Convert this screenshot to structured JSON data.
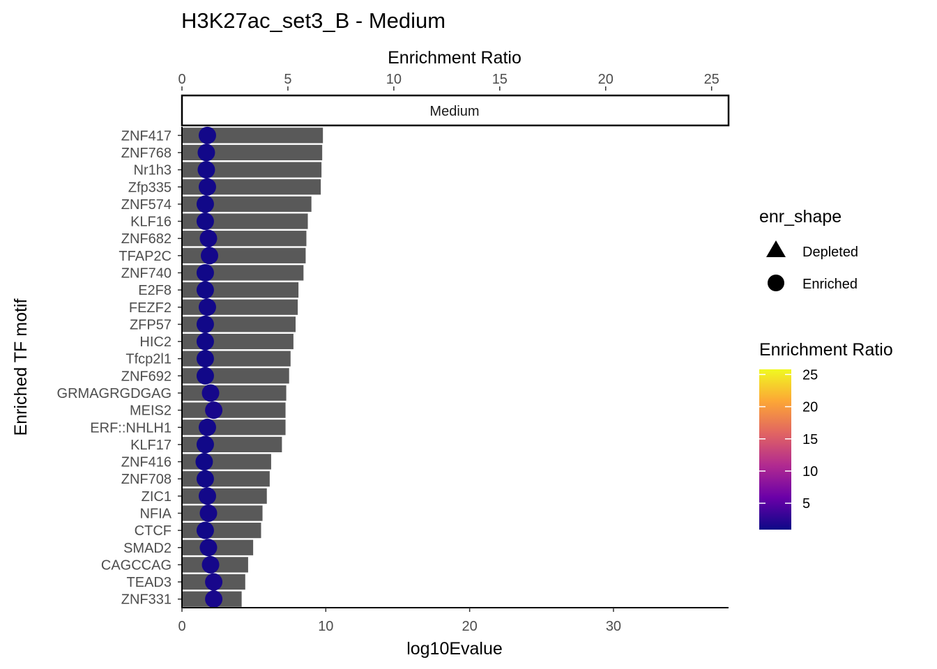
{
  "chart_data": {
    "type": "bar",
    "title": "H3K27ac_set3_B - Medium",
    "facet_label": "Medium",
    "xlabel": "log10Evalue",
    "ylabel": "Enriched TF motif",
    "secondary_xlabel": "Enrichment Ratio",
    "xlim": [
      0,
      38
    ],
    "x_ticks": [
      0,
      10,
      20,
      30
    ],
    "secondary_xlim": [
      0,
      25.8
    ],
    "secondary_x_ticks": [
      0,
      5,
      10,
      15,
      20,
      25
    ],
    "categories": [
      "ZNF417",
      "ZNF768",
      "Nr1h3",
      "Zfp335",
      "ZNF574",
      "KLF16",
      "ZNF682",
      "TFAP2C",
      "ZNF740",
      "E2F8",
      "FEZF2",
      "ZFP57",
      "HIC2",
      "Tfcp2l1",
      "ZNF692",
      "GRMAGRGDGAG",
      "MEIS2",
      "ERF::NHLH1",
      "KLF17",
      "ZNF416",
      "ZNF708",
      "ZIC1",
      "NFIA",
      "CTCF",
      "SMAD2",
      "CAGCCAG",
      "TEAD3",
      "ZNF331"
    ],
    "series": [
      {
        "name": "log10Evalue",
        "mark": "bar",
        "color": "#595959",
        "values": [
          9.8,
          9.75,
          9.7,
          9.65,
          9.0,
          8.75,
          8.65,
          8.6,
          8.45,
          8.1,
          8.05,
          7.9,
          7.75,
          7.55,
          7.45,
          7.25,
          7.2,
          7.2,
          6.95,
          6.2,
          6.1,
          5.9,
          5.6,
          5.5,
          4.95,
          4.6,
          4.4,
          4.15
        ]
      },
      {
        "name": "Enrichment Ratio",
        "mark": "point",
        "values": [
          1.2,
          1.15,
          1.15,
          1.2,
          1.1,
          1.1,
          1.25,
          1.3,
          1.1,
          1.1,
          1.2,
          1.1,
          1.1,
          1.1,
          1.1,
          1.35,
          1.5,
          1.2,
          1.1,
          1.05,
          1.1,
          1.2,
          1.25,
          1.1,
          1.25,
          1.35,
          1.5,
          1.5
        ]
      }
    ],
    "legend_shape": {
      "title": "enr_shape",
      "items": [
        {
          "label": "Depleted",
          "shape": "triangle"
        },
        {
          "label": "Enriched",
          "shape": "circle"
        }
      ]
    },
    "legend_color": {
      "title": "Enrichment Ratio",
      "range": [
        0.9,
        25.8
      ],
      "ticks": [
        5,
        10,
        15,
        20,
        25
      ],
      "palette": [
        "#0D0887",
        "#6A00A8",
        "#B12A90",
        "#E16462",
        "#FCA636",
        "#F0F921"
      ]
    }
  }
}
